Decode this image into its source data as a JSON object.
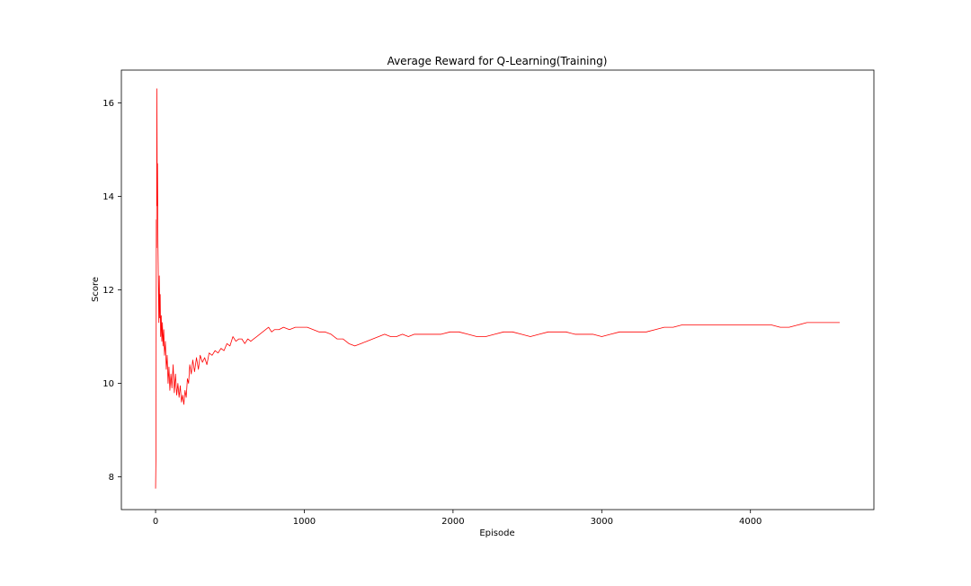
{
  "chart_data": {
    "type": "line",
    "title": "Average Reward for Q-Learning(Training)",
    "xlabel": "Episode",
    "ylabel": "Score",
    "xlim": [
      -230,
      4830
    ],
    "ylim": [
      7.3,
      16.7
    ],
    "xticks": [
      0,
      1000,
      2000,
      3000,
      4000
    ],
    "yticks": [
      8,
      10,
      12,
      14,
      16
    ],
    "grid": false,
    "line_color": "#ff0000",
    "series": [
      {
        "values_description_free": true,
        "points": [
          [
            0,
            7.75
          ],
          [
            3,
            8.6
          ],
          [
            5,
            13.5
          ],
          [
            7,
            12.9
          ],
          [
            9,
            16.3
          ],
          [
            11,
            13.8
          ],
          [
            13,
            14.7
          ],
          [
            16,
            13.0
          ],
          [
            19,
            12.1
          ],
          [
            22,
            11.3
          ],
          [
            25,
            12.3
          ],
          [
            28,
            11.4
          ],
          [
            31,
            11.9
          ],
          [
            34,
            11.0
          ],
          [
            38,
            11.45
          ],
          [
            42,
            10.9
          ],
          [
            46,
            11.3
          ],
          [
            50,
            10.8
          ],
          [
            55,
            11.15
          ],
          [
            60,
            10.6
          ],
          [
            66,
            10.9
          ],
          [
            72,
            10.3
          ],
          [
            78,
            10.6
          ],
          [
            84,
            10.0
          ],
          [
            90,
            10.35
          ],
          [
            96,
            9.85
          ],
          [
            103,
            10.2
          ],
          [
            110,
            9.9
          ],
          [
            118,
            10.4
          ],
          [
            126,
            9.8
          ],
          [
            134,
            10.2
          ],
          [
            142,
            9.75
          ],
          [
            150,
            10.0
          ],
          [
            158,
            9.7
          ],
          [
            166,
            9.95
          ],
          [
            174,
            9.6
          ],
          [
            182,
            9.75
          ],
          [
            190,
            9.55
          ],
          [
            198,
            9.85
          ],
          [
            206,
            9.7
          ],
          [
            214,
            10.1
          ],
          [
            222,
            10.0
          ],
          [
            230,
            10.4
          ],
          [
            240,
            10.2
          ],
          [
            250,
            10.5
          ],
          [
            262,
            10.25
          ],
          [
            275,
            10.55
          ],
          [
            288,
            10.3
          ],
          [
            300,
            10.6
          ],
          [
            315,
            10.45
          ],
          [
            330,
            10.55
          ],
          [
            345,
            10.4
          ],
          [
            360,
            10.65
          ],
          [
            380,
            10.6
          ],
          [
            400,
            10.7
          ],
          [
            420,
            10.65
          ],
          [
            440,
            10.75
          ],
          [
            460,
            10.7
          ],
          [
            480,
            10.85
          ],
          [
            500,
            10.8
          ],
          [
            520,
            11.0
          ],
          [
            540,
            10.9
          ],
          [
            560,
            10.95
          ],
          [
            580,
            10.95
          ],
          [
            600,
            10.85
          ],
          [
            620,
            10.95
          ],
          [
            640,
            10.9
          ],
          [
            660,
            10.95
          ],
          [
            680,
            11.0
          ],
          [
            700,
            11.05
          ],
          [
            720,
            11.1
          ],
          [
            740,
            11.15
          ],
          [
            760,
            11.2
          ],
          [
            780,
            11.1
          ],
          [
            800,
            11.15
          ],
          [
            830,
            11.15
          ],
          [
            860,
            11.2
          ],
          [
            900,
            11.15
          ],
          [
            940,
            11.2
          ],
          [
            980,
            11.2
          ],
          [
            1020,
            11.2
          ],
          [
            1060,
            11.15
          ],
          [
            1100,
            11.1
          ],
          [
            1140,
            11.1
          ],
          [
            1180,
            11.05
          ],
          [
            1220,
            10.95
          ],
          [
            1260,
            10.95
          ],
          [
            1300,
            10.85
          ],
          [
            1340,
            10.8
          ],
          [
            1380,
            10.85
          ],
          [
            1420,
            10.9
          ],
          [
            1460,
            10.95
          ],
          [
            1500,
            11.0
          ],
          [
            1540,
            11.05
          ],
          [
            1580,
            11.0
          ],
          [
            1620,
            11.0
          ],
          [
            1660,
            11.05
          ],
          [
            1700,
            11.0
          ],
          [
            1740,
            11.05
          ],
          [
            1800,
            11.05
          ],
          [
            1860,
            11.05
          ],
          [
            1920,
            11.05
          ],
          [
            1980,
            11.1
          ],
          [
            2040,
            11.1
          ],
          [
            2100,
            11.05
          ],
          [
            2160,
            11.0
          ],
          [
            2220,
            11.0
          ],
          [
            2280,
            11.05
          ],
          [
            2340,
            11.1
          ],
          [
            2400,
            11.1
          ],
          [
            2460,
            11.05
          ],
          [
            2520,
            11.0
          ],
          [
            2580,
            11.05
          ],
          [
            2640,
            11.1
          ],
          [
            2700,
            11.1
          ],
          [
            2760,
            11.1
          ],
          [
            2820,
            11.05
          ],
          [
            2880,
            11.05
          ],
          [
            2940,
            11.05
          ],
          [
            3000,
            11.0
          ],
          [
            3060,
            11.05
          ],
          [
            3120,
            11.1
          ],
          [
            3180,
            11.1
          ],
          [
            3240,
            11.1
          ],
          [
            3300,
            11.1
          ],
          [
            3360,
            11.15
          ],
          [
            3420,
            11.2
          ],
          [
            3480,
            11.2
          ],
          [
            3540,
            11.25
          ],
          [
            3600,
            11.25
          ],
          [
            3660,
            11.25
          ],
          [
            3720,
            11.25
          ],
          [
            3780,
            11.25
          ],
          [
            3840,
            11.25
          ],
          [
            3900,
            11.25
          ],
          [
            3960,
            11.25
          ],
          [
            4020,
            11.25
          ],
          [
            4080,
            11.25
          ],
          [
            4140,
            11.25
          ],
          [
            4200,
            11.2
          ],
          [
            4260,
            11.2
          ],
          [
            4320,
            11.25
          ],
          [
            4380,
            11.3
          ],
          [
            4440,
            11.3
          ],
          [
            4500,
            11.3
          ],
          [
            4560,
            11.3
          ],
          [
            4600,
            11.3
          ]
        ]
      }
    ]
  }
}
